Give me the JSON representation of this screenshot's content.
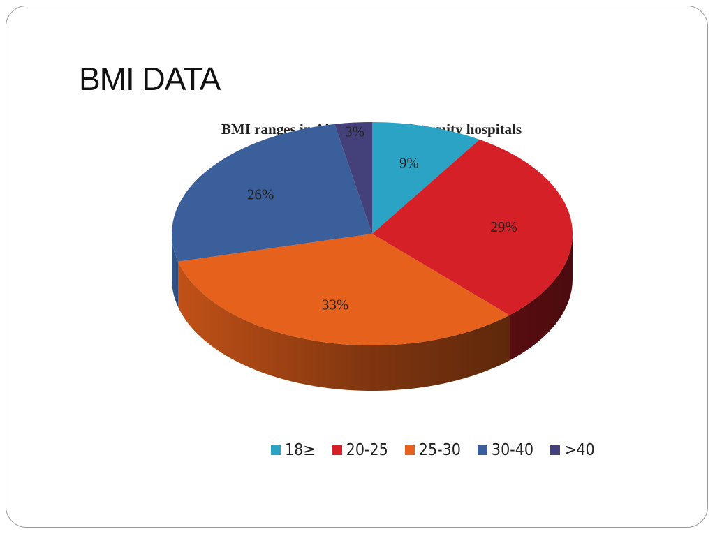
{
  "slide": {
    "title": "BMI DATA"
  },
  "chart_data": {
    "type": "pie",
    "title": "BMI ranges in Al_Noor and Maternity hospitals",
    "categories": [
      "18≥",
      "20-25",
      "25-30",
      "30-40",
      ">40"
    ],
    "values": [
      9,
      29,
      33,
      26,
      3
    ],
    "labels": [
      "9%",
      "29%",
      "33%",
      "26%",
      "3%"
    ],
    "colors": [
      "#2aa3c4",
      "#d62028",
      "#e5611c",
      "#3a5f9a",
      "#44407a"
    ],
    "legend_position": "bottom",
    "style": "3d"
  }
}
